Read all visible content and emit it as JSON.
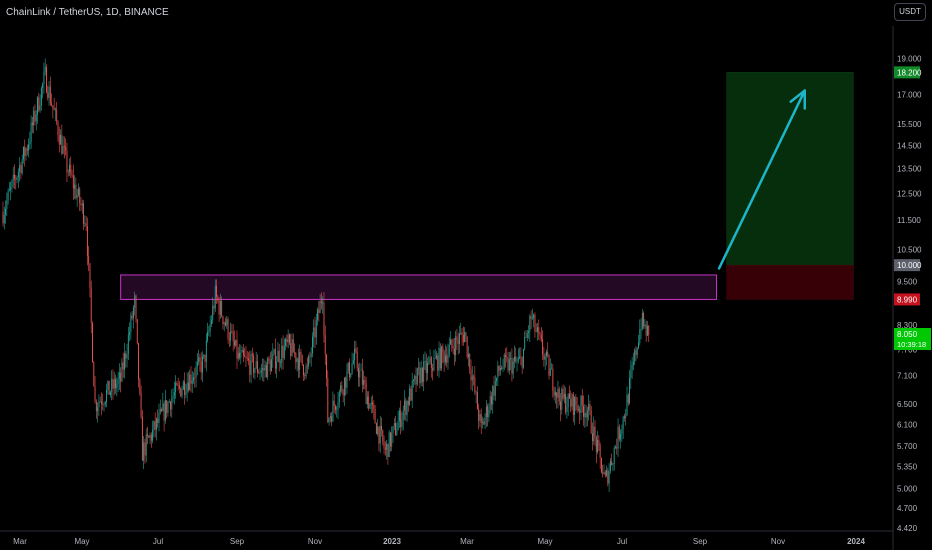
{
  "header": {
    "symbol": "ChainLink / TetherUS, 1D, BINANCE",
    "currency": "USDT"
  },
  "chart_data": {
    "type": "candlestick",
    "y_scale": "log",
    "ylim": [
      4.42,
      20.0
    ],
    "y_ticks": [
      "19.000",
      "17.000",
      "15.500",
      "14.500",
      "13.500",
      "12.500",
      "11.500",
      "10.500",
      "9.500",
      "8.300",
      "7.700",
      "7.100",
      "6.500",
      "6.100",
      "5.700",
      "5.350",
      "5.000",
      "4.700",
      "4.420"
    ],
    "x_ticks": [
      "Mar",
      "May",
      "Jul",
      "Sep",
      "Nov",
      "2023",
      "Mar",
      "May",
      "Jul",
      "Sep",
      "Nov",
      "2024"
    ],
    "x_range": [
      "2022-03",
      "2024-01"
    ],
    "last_price": {
      "value": "8.050",
      "countdown": "10:39:18",
      "color": "#00c805"
    },
    "price_path": [
      [
        "2022-03-01",
        11.8
      ],
      [
        "2022-03-20",
        14.5
      ],
      [
        "2022-04-03",
        18.0
      ],
      [
        "2022-04-20",
        13.6
      ],
      [
        "2022-05-05",
        11.5
      ],
      [
        "2022-05-12",
        6.5
      ],
      [
        "2022-06-01",
        7.0
      ],
      [
        "2022-06-12",
        8.9
      ],
      [
        "2022-06-18",
        5.6
      ],
      [
        "2022-07-10",
        6.6
      ],
      [
        "2022-08-05",
        7.4
      ],
      [
        "2022-08-14",
        9.1
      ],
      [
        "2022-09-01",
        7.5
      ],
      [
        "2022-09-20",
        7.2
      ],
      [
        "2022-10-10",
        7.8
      ],
      [
        "2022-10-25",
        7.2
      ],
      [
        "2022-11-06",
        9.2
      ],
      [
        "2022-11-10",
        6.2
      ],
      [
        "2022-12-01",
        7.5
      ],
      [
        "2022-12-25",
        5.6
      ],
      [
        "2023-01-20",
        7.1
      ],
      [
        "2023-02-10",
        7.6
      ],
      [
        "2023-02-25",
        8.1
      ],
      [
        "2023-03-10",
        6.0
      ],
      [
        "2023-03-25",
        7.3
      ],
      [
        "2023-04-10",
        7.4
      ],
      [
        "2023-04-18",
        8.5
      ],
      [
        "2023-05-10",
        6.6
      ],
      [
        "2023-06-01",
        6.4
      ],
      [
        "2023-06-15",
        5.1
      ],
      [
        "2023-07-01",
        6.4
      ],
      [
        "2023-07-13",
        8.4
      ],
      [
        "2023-07-19",
        8.05
      ]
    ],
    "annotations": {
      "resistance_zone": {
        "from": 8.99,
        "to": 9.7,
        "start": "2022-06-01",
        "end": "2023-09-10",
        "color": "#c832c8"
      },
      "position": {
        "entry": "10.000",
        "stop": "8.990",
        "target": "18.200",
        "start": "2023-09-18",
        "end": "2023-12-26"
      },
      "arrow": {
        "from": [
          "2023-09-12",
          9.9
        ],
        "to": [
          "2023-11-18",
          17.2
        ],
        "color": "#1cb6c8"
      }
    }
  }
}
